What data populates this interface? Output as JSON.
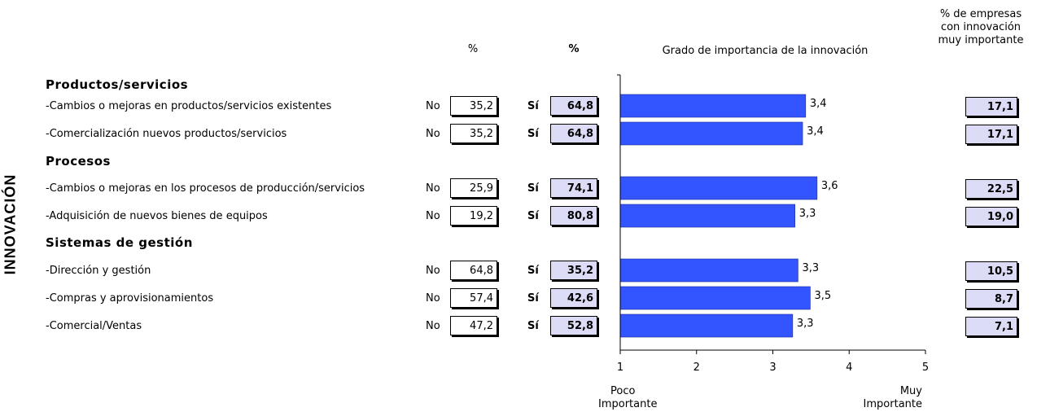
{
  "side_title": "INNOVACIÓN",
  "headers": {
    "no_pct": "%",
    "si_pct": "%",
    "chart_title": "Grado de importancia de la innovación",
    "muy_importante_col": [
      "% de empresas",
      "con innovación",
      "muy importante"
    ]
  },
  "labels": {
    "no": "No",
    "si": "Sí"
  },
  "sections": [
    {
      "title": "Productos/servicios"
    },
    {
      "title": "Procesos"
    },
    {
      "title": "Sistemas de gestión"
    }
  ],
  "rows": [
    {
      "label": "-Cambios o mejoras en productos/servicios existentes",
      "no": "35,2",
      "si": "64,8",
      "muy_importante": "17,1"
    },
    {
      "label": "-Comercialización nuevos productos/servicios",
      "no": "35,2",
      "si": "64,8",
      "muy_importante": "17,1"
    },
    {
      "label": "-Cambios o mejoras en los procesos de producción/servicios",
      "no": "25,9",
      "si": "74,1",
      "muy_importante": "22,5"
    },
    {
      "label": "-Adquisición de nuevos bienes de equipos",
      "no": "19,2",
      "si": "80,8",
      "muy_importante": "19,0"
    },
    {
      "label": "-Dirección y gestión",
      "no": "64,8",
      "si": "35,2",
      "muy_importante": "10,5"
    },
    {
      "label": "-Compras y aprovisionamientos",
      "no": "57,4",
      "si": "42,6",
      "muy_importante": "8,7"
    },
    {
      "label": "-Comercial/Ventas",
      "no": "47,2",
      "si": "52,8",
      "muy_importante": "7,1"
    }
  ],
  "chart_data": {
    "type": "bar",
    "orientation": "horizontal",
    "title": "Grado de importancia de la innovación",
    "categories": [
      "-Cambios o mejoras en productos/servicios existentes",
      "-Comercialización nuevos productos/servicios",
      "-Cambios o mejoras en los procesos de producción/servicios",
      "-Adquisición de nuevos bienes de equipos",
      "-Dirección y gestión",
      "-Compras y aprovisionamientos",
      "-Comercial/Ventas"
    ],
    "values": [
      3.43,
      3.39,
      3.58,
      3.29,
      3.33,
      3.49,
      3.26
    ],
    "value_labels": [
      "3,4",
      "3,4",
      "3,6",
      "3,3",
      "3,3",
      "3,5",
      "3,3"
    ],
    "xlim": [
      1,
      5
    ],
    "xticks": [
      1,
      2,
      3,
      4,
      5
    ],
    "xtick_labels": [
      "1",
      "2",
      "3",
      "4",
      "5"
    ],
    "axis_end_labels": {
      "left": [
        "Poco",
        "Importante"
      ],
      "right": [
        "Muy",
        "Importante"
      ]
    },
    "bar_color": "#3355ff",
    "grid": false
  }
}
